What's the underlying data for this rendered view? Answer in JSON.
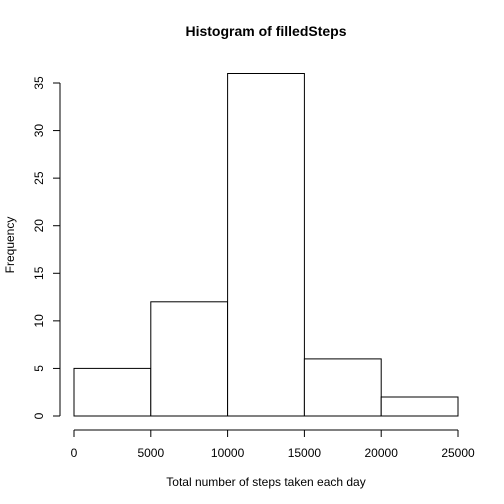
{
  "chart_data": {
    "type": "bar",
    "title": "Histogram of filledSteps",
    "xlabel": "Total number of steps taken each day",
    "ylabel": "Frequency",
    "bins": [
      {
        "from": 0,
        "to": 5000,
        "count": 5
      },
      {
        "from": 5000,
        "to": 10000,
        "count": 12
      },
      {
        "from": 10000,
        "to": 15000,
        "count": 36
      },
      {
        "from": 15000,
        "to": 20000,
        "count": 6
      },
      {
        "from": 20000,
        "to": 25000,
        "count": 2
      }
    ],
    "xlim": [
      0,
      25000
    ],
    "ylim": [
      0,
      35
    ],
    "xticks": [
      0,
      5000,
      10000,
      15000,
      20000,
      25000
    ],
    "xtick_labels": [
      "0",
      "5000",
      "10000",
      "15000",
      "20000",
      "25000"
    ],
    "yticks": [
      0,
      5,
      10,
      15,
      20,
      25,
      30,
      35
    ],
    "ytick_labels": [
      "0",
      "5",
      "10",
      "15",
      "20",
      "25",
      "30",
      "35"
    ],
    "grid": false,
    "legend": "none"
  }
}
